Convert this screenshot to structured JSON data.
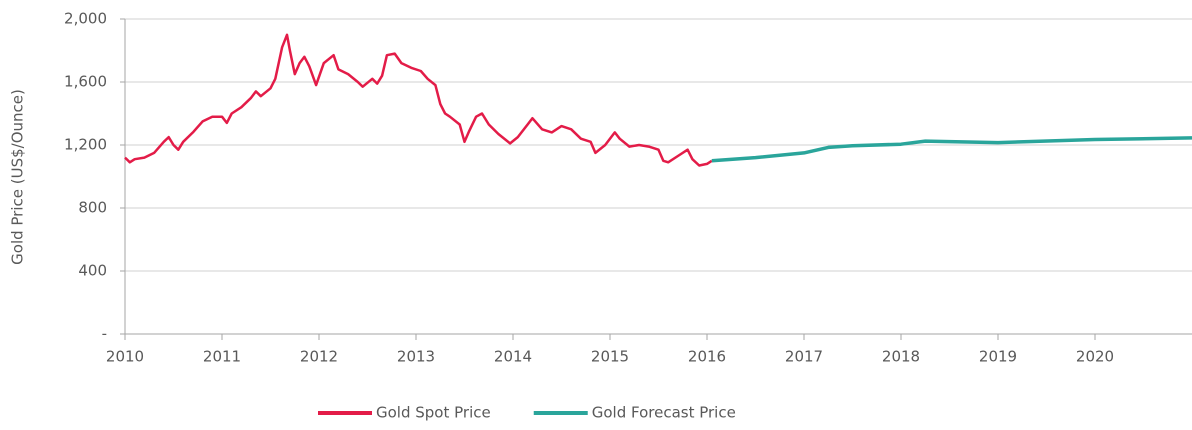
{
  "chart_data": {
    "type": "line",
    "ylabel": "Gold Price (US$/Ounce)",
    "xlim": [
      2010,
      2021
    ],
    "xticks": [
      2010,
      2011,
      2012,
      2013,
      2014,
      2015,
      2016,
      2017,
      2018,
      2019,
      2020
    ],
    "ylim": [
      0,
      2000
    ],
    "yticks": [
      {
        "value": 0,
        "label": "-"
      },
      400,
      800,
      {
        "value": 1200,
        "label": "1,200"
      },
      {
        "value": 1600,
        "label": "1,600"
      },
      {
        "value": 2000,
        "label": "2,000"
      }
    ],
    "grid": true,
    "legend": "bottom",
    "series": [
      {
        "name": "Gold Spot Price",
        "color": "#e31c48",
        "x": [
          2010.0,
          2010.05,
          2010.1,
          2010.2,
          2010.3,
          2010.4,
          2010.45,
          2010.5,
          2010.55,
          2010.6,
          2010.7,
          2010.8,
          2010.9,
          2011.0,
          2011.05,
          2011.1,
          2011.2,
          2011.3,
          2011.35,
          2011.4,
          2011.5,
          2011.55,
          2011.62,
          2011.67,
          2011.7,
          2011.75,
          2011.8,
          2011.85,
          2011.9,
          2011.97,
          2012.05,
          2012.15,
          2012.2,
          2012.3,
          2012.4,
          2012.45,
          2012.55,
          2012.6,
          2012.65,
          2012.7,
          2012.78,
          2012.85,
          2012.95,
          2013.05,
          2013.12,
          2013.2,
          2013.25,
          2013.3,
          2013.35,
          2013.45,
          2013.5,
          2013.55,
          2013.62,
          2013.68,
          2013.75,
          2013.85,
          2013.97,
          2014.05,
          2014.15,
          2014.2,
          2014.3,
          2014.4,
          2014.5,
          2014.6,
          2014.7,
          2014.8,
          2014.85,
          2014.95,
          2015.05,
          2015.1,
          2015.2,
          2015.3,
          2015.4,
          2015.5,
          2015.55,
          2015.6,
          2015.7,
          2015.8,
          2015.85,
          2015.92,
          2016.0,
          2016.05
        ],
        "values": [
          1120,
          1090,
          1110,
          1120,
          1150,
          1220,
          1250,
          1200,
          1170,
          1220,
          1280,
          1350,
          1380,
          1380,
          1340,
          1400,
          1440,
          1500,
          1540,
          1510,
          1560,
          1620,
          1820,
          1900,
          1800,
          1650,
          1720,
          1760,
          1700,
          1580,
          1720,
          1770,
          1680,
          1650,
          1600,
          1570,
          1620,
          1590,
          1640,
          1770,
          1780,
          1720,
          1690,
          1670,
          1620,
          1580,
          1460,
          1400,
          1380,
          1330,
          1220,
          1290,
          1380,
          1400,
          1330,
          1270,
          1210,
          1250,
          1330,
          1370,
          1300,
          1280,
          1320,
          1300,
          1240,
          1220,
          1150,
          1200,
          1280,
          1240,
          1190,
          1200,
          1190,
          1170,
          1100,
          1090,
          1130,
          1170,
          1110,
          1070,
          1080,
          1100
        ]
      },
      {
        "name": "Gold Forecast Price",
        "color": "#2aa59b",
        "x": [
          2016.05,
          2016.5,
          2017.0,
          2017.25,
          2017.5,
          2018.0,
          2018.25,
          2019.0,
          2020.0,
          2021.0
        ],
        "values": [
          1100,
          1120,
          1150,
          1185,
          1195,
          1205,
          1225,
          1215,
          1235,
          1245
        ]
      }
    ]
  }
}
